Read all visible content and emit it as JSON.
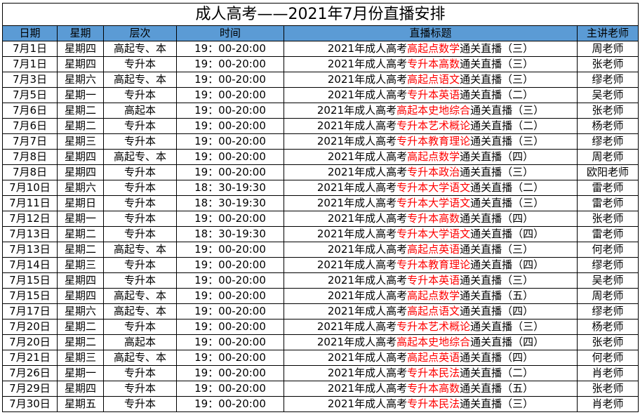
{
  "title": "成人高考——2021年7月份直播安排",
  "headers": [
    "日期",
    "星期",
    "层次",
    "时间",
    "直播标题",
    "主讲老师"
  ],
  "colors": {
    "header_bg": "#5b9bd5",
    "highlight": "#ff0000"
  },
  "rows": [
    {
      "date": "7月1日",
      "weekday": "星期四",
      "level": "高起专、本",
      "time": "19：00-20:00",
      "title_prefix": "2021年成人高考",
      "title_subject": "高起点数学",
      "title_suffix": "通关直播（三）",
      "teacher": "周老师"
    },
    {
      "date": "7月1日",
      "weekday": "星期四",
      "level": "专升本",
      "time": "19：00-20:00",
      "title_prefix": "2021年成人高考",
      "title_subject": "专升本高数",
      "title_suffix": "通关直播（三）",
      "teacher": "张老师"
    },
    {
      "date": "7月3日",
      "weekday": "星期六",
      "level": "高起专、本",
      "time": "19：00-20:00",
      "title_prefix": "2021年成人高考",
      "title_subject": "高起点语文",
      "title_suffix": "通关直播（三）",
      "teacher": "缪老师"
    },
    {
      "date": "7月5日",
      "weekday": "星期一",
      "level": "专升本",
      "time": "19：00-20:00",
      "title_prefix": "2021年成人高考",
      "title_subject": "专升本英语",
      "title_suffix": "通关直播（二）",
      "teacher": "吴老师"
    },
    {
      "date": "7月6日",
      "weekday": "星期二",
      "level": "高起本",
      "time": "19：00-20:00",
      "title_prefix": "2021年成人高考",
      "title_subject": "高起本史地综合",
      "title_suffix": "通关直播（三）",
      "teacher": "张老师"
    },
    {
      "date": "7月6日",
      "weekday": "星期二",
      "level": "专升本",
      "time": "19：00-20:00",
      "title_prefix": "2021年成人高考",
      "title_subject": "专升本艺术概论",
      "title_suffix": "通关直播（二）",
      "teacher": "杨老师"
    },
    {
      "date": "7月7日",
      "weekday": "星期三",
      "level": "专升本",
      "time": "19：00-20:00",
      "title_prefix": "2021年成人高考",
      "title_subject": "专升本教育理论",
      "title_suffix": "通关直播（三）",
      "teacher": "缪老师"
    },
    {
      "date": "7月8日",
      "weekday": "星期四",
      "level": "高起专、本",
      "time": "19：00-20:00",
      "title_prefix": "2021年成人高考",
      "title_subject": "高起点数学",
      "title_suffix": "通关直播（四）",
      "teacher": "周老师"
    },
    {
      "date": "7月8日",
      "weekday": "星期四",
      "level": "专升本",
      "time": "19：00-20:00",
      "title_prefix": "2021年成人高考",
      "title_subject": "专升本政治",
      "title_suffix": "通关直播（三）",
      "teacher": "欧阳老师"
    },
    {
      "date": "7月10日",
      "weekday": "星期六",
      "level": "专升本",
      "time": "18：30-19:30",
      "title_prefix": "2021年成人高考",
      "title_subject": "专升本大学语文",
      "title_suffix": "通关直播（二）",
      "teacher": "雷老师"
    },
    {
      "date": "7月11日",
      "weekday": "星期日",
      "level": "专升本",
      "time": "18：30-19:30",
      "title_prefix": "2021年成人高考",
      "title_subject": "专升本大学语文",
      "title_suffix": "通关直播（三）",
      "teacher": "雷老师"
    },
    {
      "date": "7月12日",
      "weekday": "星期一",
      "level": "专升本",
      "time": "19：00-20:00",
      "title_prefix": "2021年成人高考",
      "title_subject": "专升本高数",
      "title_suffix": "通关直播（四）",
      "teacher": "张老师"
    },
    {
      "date": "7月13日",
      "weekday": "星期二",
      "level": "专升本",
      "time": "18：30-19:30",
      "title_prefix": "2021年成人高考",
      "title_subject": "专升本大学语文",
      "title_suffix": "通关直播（四）",
      "teacher": "雷老师"
    },
    {
      "date": "7月13日",
      "weekday": "星期二",
      "level": "高起专、本",
      "time": "19：00-20:00",
      "title_prefix": "2021年成人高考",
      "title_subject": "高起点英语",
      "title_suffix": "通关直播（三）",
      "teacher": "何老师"
    },
    {
      "date": "7月14日",
      "weekday": "星期三",
      "level": "专升本",
      "time": "19：00-20:00",
      "title_prefix": "2021年成人高考",
      "title_subject": "专升本教育理论",
      "title_suffix": "通关直播（四）",
      "teacher": "缪老师"
    },
    {
      "date": "7月15日",
      "weekday": "星期四",
      "level": "专升本",
      "time": "19：00-20:00",
      "title_prefix": "2021年成人高考",
      "title_subject": "专升本英语",
      "title_suffix": "通关直播（三）",
      "teacher": "吴老师"
    },
    {
      "date": "7月15日",
      "weekday": "星期四",
      "level": "高起专、本",
      "time": "19：00-20:00",
      "title_prefix": "2021年成人高考",
      "title_subject": "高起点数学",
      "title_suffix": "通关直播（五）",
      "teacher": "周老师"
    },
    {
      "date": "7月17日",
      "weekday": "星期六",
      "level": "高起专、本",
      "time": "19：00-20:00",
      "title_prefix": "2021年成人高考",
      "title_subject": "高起点语文",
      "title_suffix": "通关直播（四）",
      "teacher": "缪老师"
    },
    {
      "date": "7月20日",
      "weekday": "星期二",
      "level": "专升本",
      "time": "19：00-20:00",
      "title_prefix": "2021年成人高考",
      "title_subject": "专升本艺术概论",
      "title_suffix": "通关直播（三）",
      "teacher": "杨老师"
    },
    {
      "date": "7月20日",
      "weekday": "星期二",
      "level": "高起本",
      "time": "19：00-20:00",
      "title_prefix": "2021年成人高考",
      "title_subject": "高起本史地综合",
      "title_suffix": "通关直播（四）",
      "teacher": "张老师"
    },
    {
      "date": "7月21日",
      "weekday": "星期三",
      "level": "高起专、本",
      "time": "19：00-20:00",
      "title_prefix": "2021年成人高考",
      "title_subject": "高起点英语",
      "title_suffix": "通关直播（四）",
      "teacher": "何老师"
    },
    {
      "date": "7月26日",
      "weekday": "星期一",
      "level": "专升本",
      "time": "19：00-20:00",
      "title_prefix": "2021年成人高考",
      "title_subject": "专升本民法",
      "title_suffix": "通关直播（二）",
      "teacher": "肖老师"
    },
    {
      "date": "7月29日",
      "weekday": "星期四",
      "level": "专升本",
      "time": "19：00-20:00",
      "title_prefix": "2021年成人高考",
      "title_subject": "专升本高数",
      "title_suffix": "通关直播（五）",
      "teacher": "张老师"
    },
    {
      "date": "7月30日",
      "weekday": "星期五",
      "level": "专升本",
      "time": "19：00-20:00",
      "title_prefix": "2021年成人高考",
      "title_subject": "专升本民法",
      "title_suffix": "通关直播（三）",
      "teacher": "肖老师"
    }
  ]
}
